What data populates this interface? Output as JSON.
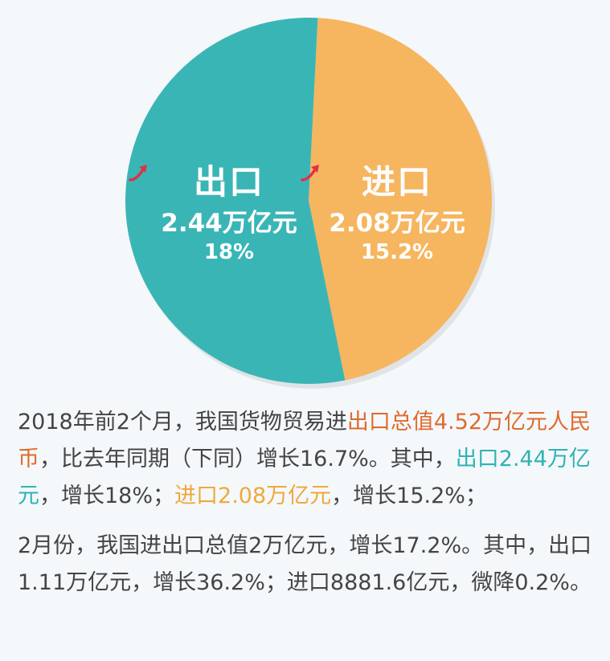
{
  "chart_data": {
    "type": "pie",
    "title": "",
    "series": [
      {
        "name": "出口",
        "value": 2.44,
        "value_label": "2.44万亿元",
        "growth_label": "18%",
        "color": "#3ab5b6"
      },
      {
        "name": "进口",
        "value": 2.08,
        "value_label": "2.08万亿元",
        "growth_label": "15.2%",
        "color": "#f6b55f"
      }
    ],
    "unit": "万亿元"
  },
  "colors": {
    "export": "#3ab5b6",
    "import": "#f6b55f",
    "arrow": "#e0304a",
    "text": "#444444",
    "highlight_red": "#e06a2c",
    "highlight_teal": "#2fb3b3",
    "highlight_orange": "#f0a83a"
  },
  "icons": {
    "growth": "up-arrow-icon"
  },
  "text": {
    "p1": [
      {
        "text": "2018年前2个月，我国货物贸易进",
        "style": ""
      },
      {
        "text": "出口总值4.52万亿元人民币",
        "style": "hl-red"
      },
      {
        "text": "，比去年同期（下同）增长16.7%。其中，",
        "style": ""
      },
      {
        "text": "出口2.44万亿元",
        "style": "hl-teal"
      },
      {
        "text": "，增长18%；",
        "style": ""
      },
      {
        "text": "进口2.08万亿元",
        "style": "hl-orange"
      },
      {
        "text": "，增长15.2%；",
        "style": ""
      }
    ],
    "p2": "2月份，我国进出口总值2万亿元，增长17.2%。其中，出口1.11万亿元，增长36.2%；进口8881.6亿元，微降0.2%。"
  }
}
